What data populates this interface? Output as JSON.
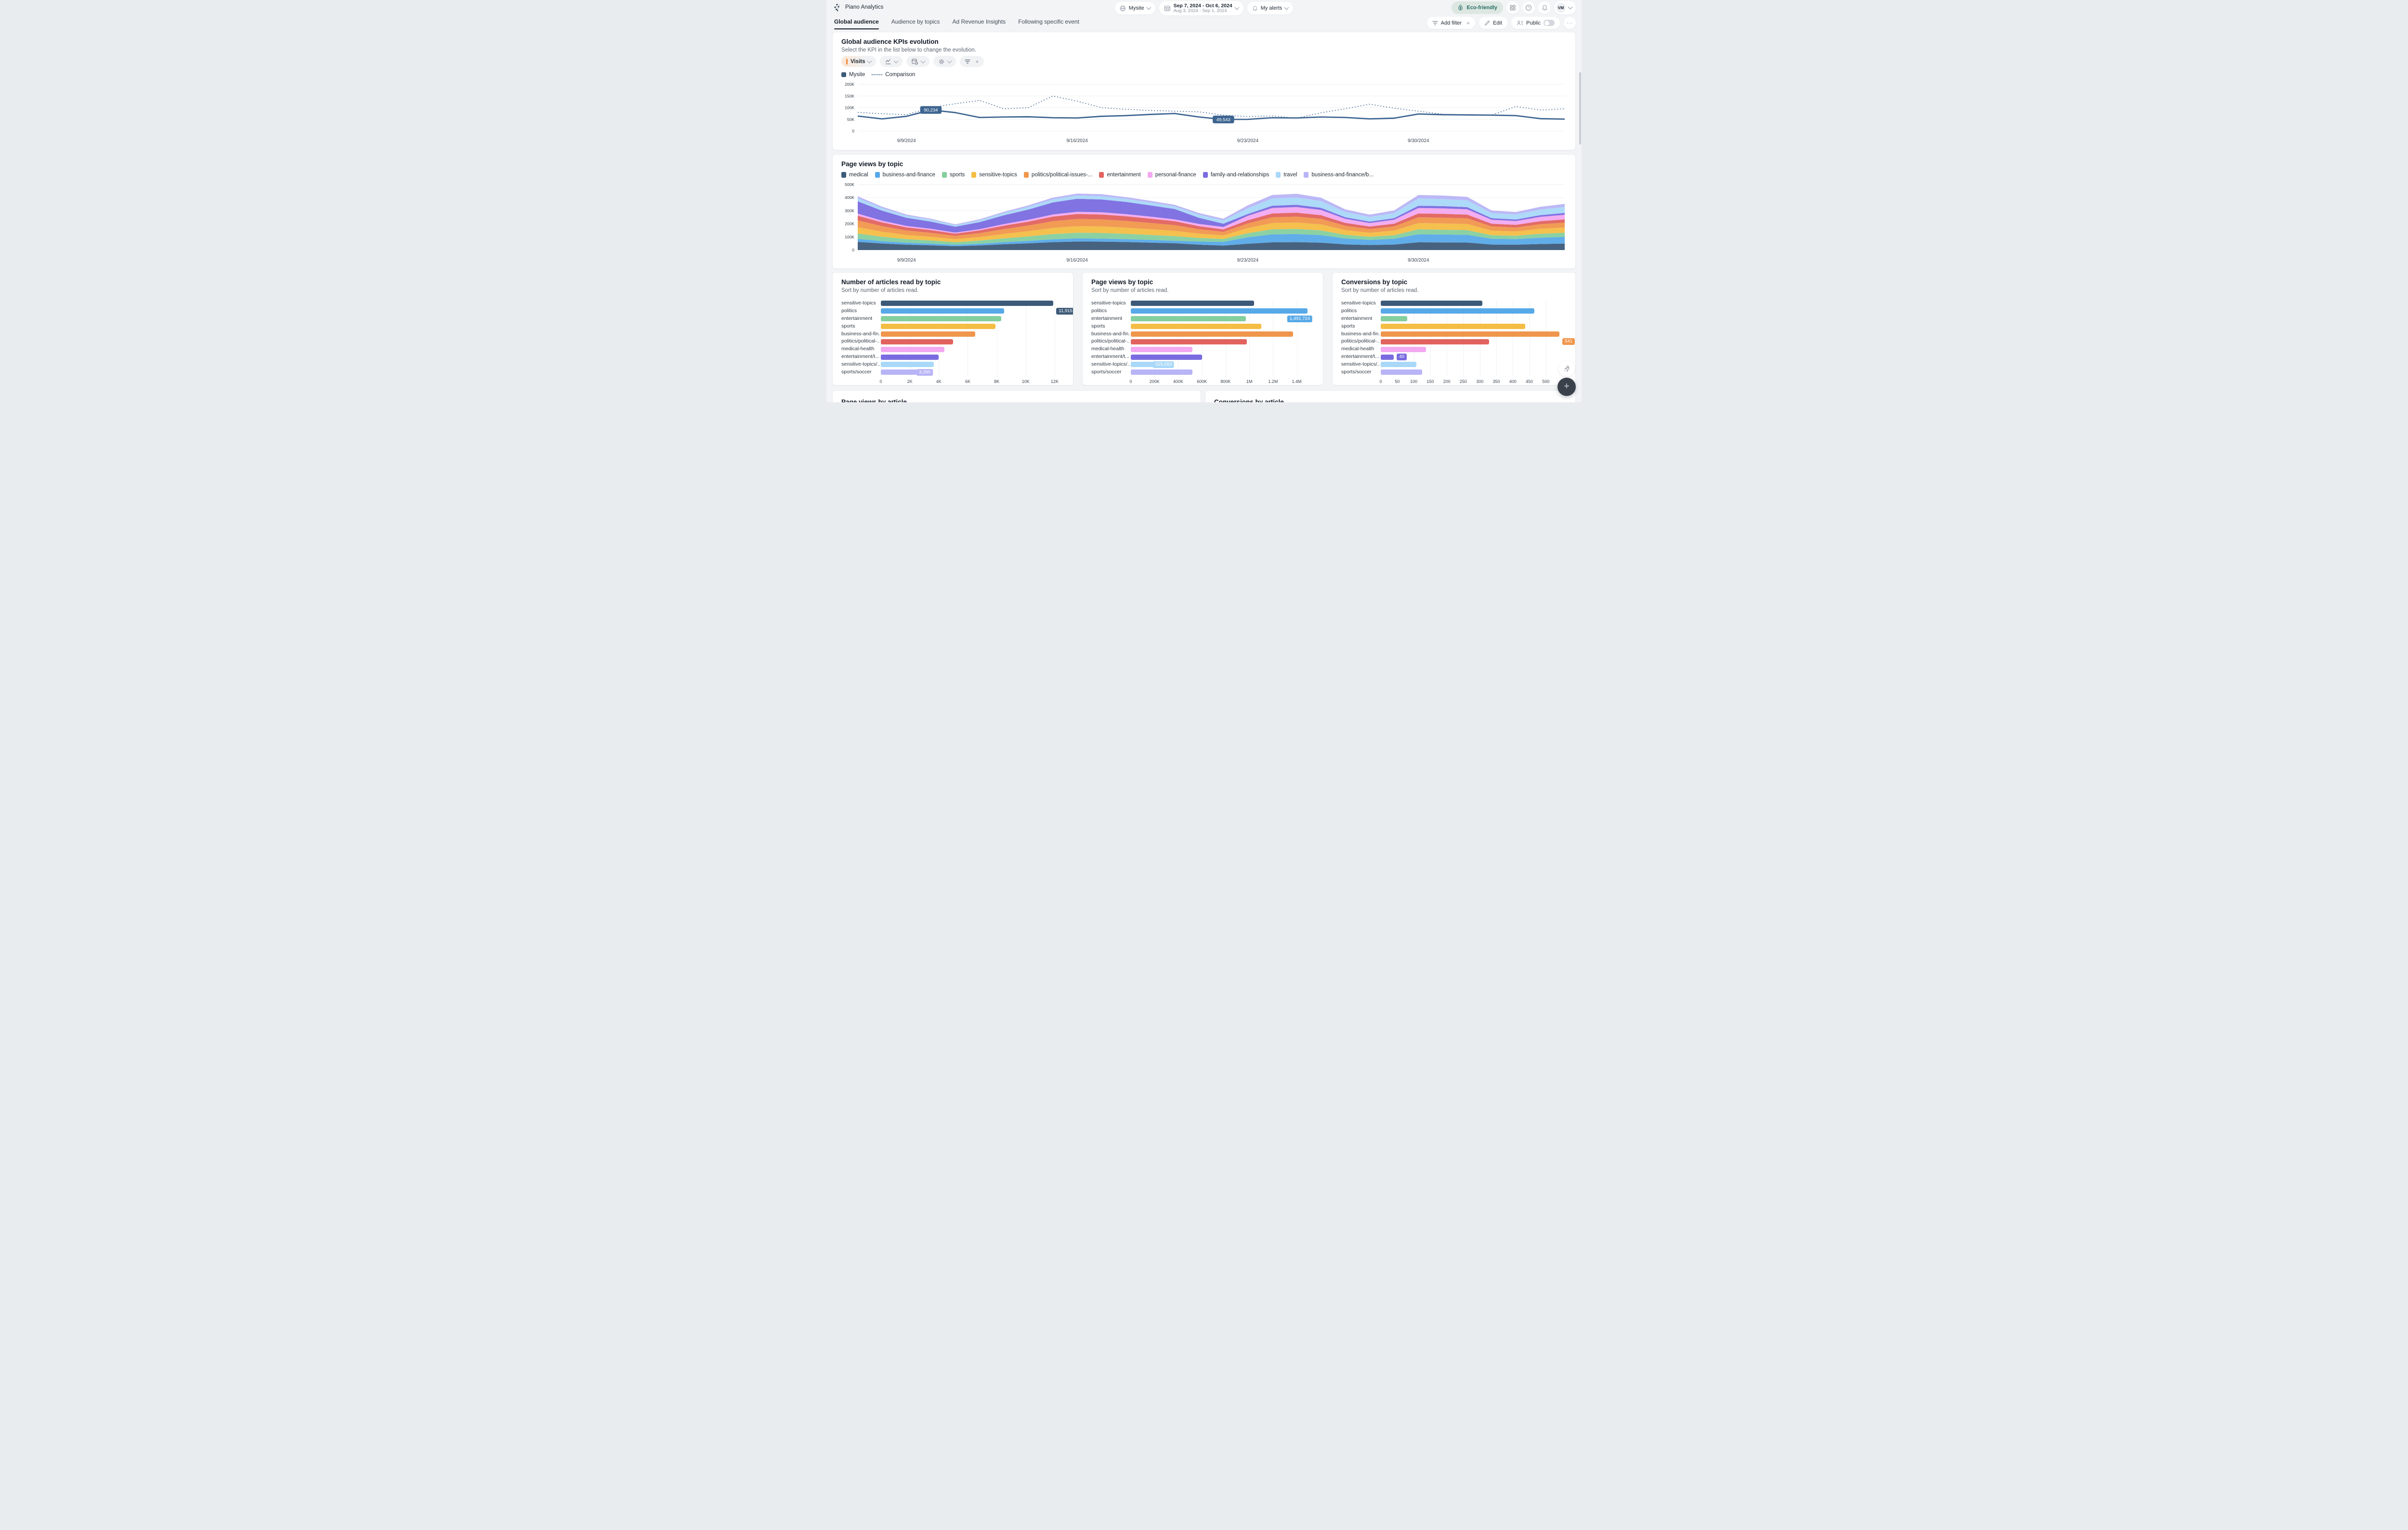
{
  "app": {
    "title": "Piano Analytics"
  },
  "header": {
    "site_picker": {
      "label": "Mysite"
    },
    "date_picker": {
      "primary": "Sep 7, 2024 - Oct 6, 2024",
      "comparison": "Aug 3, 2024 - Sep 1, 2024"
    },
    "alerts": {
      "label": "My alerts"
    },
    "eco_badge": {
      "label": "Eco-friendly",
      "bg": "#dde7e2",
      "color": "#276e66"
    },
    "avatar": {
      "initials": "VM"
    }
  },
  "tabs": [
    {
      "label": "Global audience",
      "active": true
    },
    {
      "label": "Audience by topics",
      "active": false
    },
    {
      "label": "Ad Revenue Insights",
      "active": false
    },
    {
      "label": "Following specific event",
      "active": false
    }
  ],
  "toolbar": {
    "add_filter": "Add filter",
    "edit": "Edit",
    "public": "Public",
    "public_toggle_on": false,
    "more": "···"
  },
  "kpi": {
    "title": "Global audience KPIs evolution",
    "subtitle": "Select the KPI in the list below to change the evolution.",
    "kpi_selector": "Visits",
    "legend_site": "Mysite",
    "legend_comparison": "Comparison"
  },
  "bottom": {
    "left_title": "Page views by article",
    "right_title": "Conversions by article"
  },
  "colors": {
    "accent_line": "#3e6591",
    "palette": [
      "#3d5a78",
      "#57a9e8",
      "#85cf9e",
      "#f4bd44",
      "#f0964c",
      "#e2635e",
      "#f2a9ef",
      "#7a6ce0",
      "#a9d8f8",
      "#b8b4f6"
    ]
  },
  "chart_data": [
    {
      "id": "kpi_evolution",
      "type": "line",
      "title": "Global audience KPIs evolution",
      "x_range": [
        "Sep 7, 2024",
        "Oct 6, 2024"
      ],
      "x_tick_labels": [
        "9/9/2024",
        "9/16/2024",
        "9/23/2024",
        "9/30/2024"
      ],
      "x_tick_indices": [
        2,
        9,
        16,
        23
      ],
      "ylim": [
        0,
        200000
      ],
      "yticks": [
        {
          "value": 0,
          "label": "0"
        },
        {
          "value": 50000,
          "label": "50K"
        },
        {
          "value": 100000,
          "label": "100K"
        },
        {
          "value": 150000,
          "label": "150K"
        },
        {
          "value": 200000,
          "label": "200K"
        }
      ],
      "grid": true,
      "legend_position": "top-left",
      "series": [
        {
          "name": "Mysite",
          "style": "solid",
          "color": "#3e6591",
          "values": [
            64000,
            52000,
            63000,
            90234,
            79000,
            58000,
            60000,
            61000,
            57000,
            56000,
            63000,
            66000,
            71000,
            75000,
            60000,
            49543,
            50000,
            57000,
            56000,
            60000,
            58000,
            52000,
            55000,
            73000,
            70000,
            69000,
            68000,
            66000,
            53000,
            51000
          ]
        },
        {
          "name": "Comparison",
          "style": "dashed",
          "color": "#3e6591",
          "values": [
            80000,
            74000,
            70000,
            100000,
            117000,
            131000,
            95000,
            100000,
            150000,
            128000,
            100000,
            93000,
            88000,
            85000,
            82000,
            68000,
            62000,
            65000,
            55000,
            78000,
            95000,
            115000,
            98000,
            85000,
            72000,
            70000,
            68000,
            105000,
            90000,
            95000
          ]
        }
      ],
      "point_labels": [
        {
          "series": "Mysite",
          "index": 3,
          "text": "90,234"
        },
        {
          "series": "Mysite",
          "index": 15,
          "text": "49,543"
        }
      ]
    },
    {
      "id": "page_views_by_topic_evolution",
      "type": "area",
      "stacked": true,
      "title": "Page views by topic",
      "x_tick_labels": [
        "9/9/2024",
        "9/16/2024",
        "9/23/2024",
        "9/30/2024"
      ],
      "x_tick_indices": [
        2,
        9,
        16,
        23
      ],
      "ylim": [
        0,
        500000
      ],
      "yticks": [
        {
          "value": 0,
          "label": "0"
        },
        {
          "value": 100000,
          "label": "100K"
        },
        {
          "value": 200000,
          "label": "200K"
        },
        {
          "value": 300000,
          "label": "300K"
        },
        {
          "value": 400000,
          "label": "400K"
        },
        {
          "value": 500000,
          "label": "500K"
        }
      ],
      "grid": true,
      "values_are_estimates": true,
      "series": [
        {
          "name": "medical",
          "color": "#3d5a78",
          "values": [
            62000,
            50000,
            41000,
            36000,
            29000,
            35000,
            44000,
            51000,
            60000,
            65000,
            64000,
            61000,
            56000,
            52000,
            41000,
            34000,
            48000,
            59000,
            60000,
            56000,
            43000,
            38000,
            42000,
            59000,
            58000,
            57000,
            42000,
            41000,
            46000,
            49000
          ]
        },
        {
          "name": "business-and-finance",
          "color": "#57a9e8",
          "values": [
            23000,
            18000,
            15000,
            13000,
            11000,
            13000,
            16000,
            19000,
            22000,
            24000,
            23000,
            22000,
            21000,
            19000,
            24000,
            28000,
            49000,
            61000,
            62000,
            58000,
            45000,
            39000,
            44000,
            61000,
            60000,
            59000,
            44000,
            42000,
            48000,
            51000
          ]
        },
        {
          "name": "sports",
          "color": "#85cf9e",
          "values": [
            41000,
            33000,
            27000,
            24000,
            20000,
            24000,
            29000,
            34000,
            40000,
            43000,
            43000,
            41000,
            38000,
            35000,
            27000,
            22000,
            31000,
            38000,
            39000,
            36000,
            28000,
            24000,
            27000,
            38000,
            37000,
            36000,
            27000,
            26000,
            30000,
            32000
          ]
        },
        {
          "name": "sensitive-topics",
          "color": "#f4bd44",
          "values": [
            48000,
            39000,
            32000,
            28000,
            23000,
            27000,
            34000,
            40000,
            47000,
            50000,
            50000,
            47000,
            44000,
            40000,
            33000,
            28000,
            39000,
            48000,
            49000,
            46000,
            36000,
            31000,
            35000,
            48000,
            48000,
            47000,
            35000,
            33000,
            38000,
            40000
          ]
        },
        {
          "name": "politics/political-issues-...",
          "color": "#f0964c",
          "values": [
            52000,
            42000,
            34000,
            30000,
            25000,
            30000,
            37000,
            43000,
            51000,
            55000,
            54000,
            51000,
            48000,
            44000,
            34000,
            27000,
            36000,
            44000,
            45000,
            42000,
            33000,
            28000,
            32000,
            44000,
            44000,
            43000,
            32000,
            30000,
            35000,
            37000
          ]
        },
        {
          "name": "entertainment",
          "color": "#e2635e",
          "values": [
            36000,
            29000,
            24000,
            21000,
            17000,
            21000,
            26000,
            30000,
            35000,
            38000,
            37000,
            36000,
            33000,
            30000,
            23000,
            18000,
            24000,
            29000,
            30000,
            28000,
            22000,
            19000,
            21000,
            29000,
            29000,
            28000,
            21000,
            20000,
            23000,
            25000
          ]
        },
        {
          "name": "personal-finance",
          "color": "#f2a9ef",
          "values": [
            16000,
            13000,
            11000,
            10000,
            8000,
            9000,
            12000,
            14000,
            16000,
            17000,
            17000,
            16000,
            15000,
            14000,
            17000,
            19000,
            34000,
            42000,
            43000,
            40000,
            31000,
            27000,
            30000,
            42000,
            42000,
            41000,
            30000,
            29000,
            33000,
            35000
          ]
        },
        {
          "name": "family-and-relationships",
          "color": "#7a6ce0",
          "values": [
            94000,
            76000,
            62000,
            55000,
            45000,
            54000,
            67000,
            78000,
            92000,
            99000,
            98000,
            93000,
            86000,
            79000,
            47000,
            25000,
            14000,
            17000,
            17000,
            16000,
            12000,
            11000,
            12000,
            17000,
            17000,
            16000,
            12000,
            12000,
            13000,
            14000
          ]
        },
        {
          "name": "travel",
          "color": "#a9d8f8",
          "values": [
            24000,
            19000,
            16000,
            14000,
            11000,
            14000,
            17000,
            20000,
            23000,
            25000,
            25000,
            23000,
            22000,
            20000,
            23000,
            25000,
            44000,
            55000,
            56000,
            52000,
            40000,
            35000,
            39000,
            55000,
            54000,
            53000,
            39000,
            38000,
            43000,
            46000
          ]
        },
        {
          "name": "business-and-finance/b...",
          "color": "#b8b4f6",
          "values": [
            14000,
            12000,
            9000,
            8000,
            7000,
            8000,
            10000,
            12000,
            14000,
            15000,
            15000,
            14000,
            13000,
            12000,
            13000,
            13000,
            22000,
            27000,
            28000,
            26000,
            20000,
            18000,
            20000,
            27000,
            27000,
            26000,
            20000,
            19000,
            21000,
            23000
          ]
        }
      ]
    },
    {
      "id": "articles_read_by_topic",
      "type": "bar",
      "orientation": "horizontal",
      "title": "Number of articles read by topic",
      "subtitle": "Sort by number of articles read.",
      "categories": [
        "sensitive-topics",
        "politics",
        "entertainment",
        "sports",
        "business-and-fin...",
        "politics/political-...",
        "medical-health",
        "entertainment/t...",
        "sensitive-topics/...",
        "sports/soccer"
      ],
      "values": [
        11915,
        8500,
        8300,
        7900,
        6500,
        5000,
        4400,
        4000,
        3650,
        3260
      ],
      "xmax": 12600,
      "xticks": [
        {
          "value": 0,
          "label": "0"
        },
        {
          "value": 2000,
          "label": "2K"
        },
        {
          "value": 4000,
          "label": "4K"
        },
        {
          "value": 6000,
          "label": "6K"
        },
        {
          "value": 8000,
          "label": "8K"
        },
        {
          "value": 10000,
          "label": "10K"
        },
        {
          "value": 12000,
          "label": "12K"
        }
      ],
      "badges": [
        {
          "label": "11,915",
          "row": 0,
          "display_row": 1,
          "mode": "after",
          "color": "#3d5a78"
        },
        {
          "label": "3,260",
          "row": 9,
          "display_row": 9,
          "mode": "overlap",
          "color": "#b8b4f6"
        }
      ]
    },
    {
      "id": "page_views_by_topic_bar",
      "type": "bar",
      "orientation": "horizontal",
      "title": "Page views by topic",
      "subtitle": "Sort by number of articles read.",
      "categories": [
        "sensitive-topics",
        "politics",
        "entertainment",
        "sports",
        "business-and-fin...",
        "politics/political-...",
        "medical-health",
        "entertainment/t...",
        "sensitive-topics/...",
        "sports/soccer"
      ],
      "values": [
        1040000,
        1491724,
        970000,
        1100000,
        1370000,
        980000,
        520000,
        600000,
        325583,
        520000
      ],
      "xmax": 1540000,
      "xticks": [
        {
          "value": 0,
          "label": "0"
        },
        {
          "value": 200000,
          "label": "200K"
        },
        {
          "value": 400000,
          "label": "400K"
        },
        {
          "value": 600000,
          "label": "600K"
        },
        {
          "value": 800000,
          "label": "800K"
        },
        {
          "value": 1000000,
          "label": "1M"
        },
        {
          "value": 1200000,
          "label": "1.2M"
        },
        {
          "value": 1400000,
          "label": "1.4M"
        }
      ],
      "badges": [
        {
          "label": "1,491,724",
          "row": 1,
          "display_row": 2,
          "mode": "overlap",
          "color": "#57a9e8"
        },
        {
          "label": "325,583",
          "row": 8,
          "display_row": 8,
          "mode": "overlap",
          "color": "#a9d8f8"
        }
      ]
    },
    {
      "id": "conversions_by_topic",
      "type": "bar",
      "orientation": "horizontal",
      "title": "Conversions by topic",
      "subtitle": "Sort by number of articles read.",
      "categories": [
        "sensitive-topics",
        "politics",
        "entertainment",
        "sports",
        "business-and-fin...",
        "politics/political-...",
        "medical-health",
        "entertainment/t...",
        "sensitive-topics/...",
        "sports/soccer"
      ],
      "values": [
        307,
        465,
        80,
        437,
        541,
        328,
        137,
        40,
        108,
        126
      ],
      "xmax": 560,
      "xticks": [
        {
          "value": 0,
          "label": "0"
        },
        {
          "value": 50,
          "label": "50"
        },
        {
          "value": 100,
          "label": "100"
        },
        {
          "value": 150,
          "label": "150"
        },
        {
          "value": 200,
          "label": "200"
        },
        {
          "value": 250,
          "label": "250"
        },
        {
          "value": 300,
          "label": "300"
        },
        {
          "value": 350,
          "label": "350"
        },
        {
          "value": 400,
          "label": "400"
        },
        {
          "value": 450,
          "label": "450"
        },
        {
          "value": 500,
          "label": "500"
        }
      ],
      "badges": [
        {
          "label": "541",
          "row": 4,
          "display_row": 5,
          "mode": "after",
          "color": "#f0964c"
        },
        {
          "label": "40",
          "row": 7,
          "display_row": 7,
          "mode": "after",
          "color": "#7a6ce0"
        }
      ]
    }
  ]
}
